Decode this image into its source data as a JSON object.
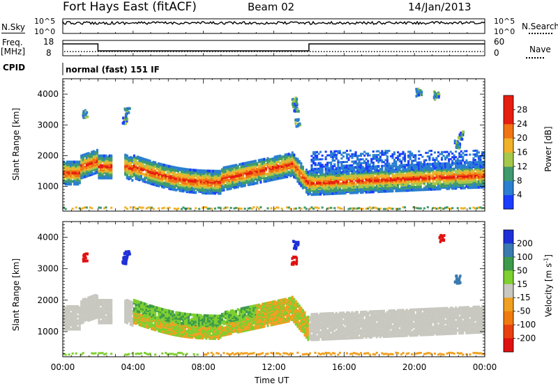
{
  "header": {
    "station": "Fort Hays East (fitACF)",
    "beam": "Beam 02",
    "date": "14/Jan/2013"
  },
  "top_panels": {
    "nsky_label": "N.Sky",
    "nsearch_label": "N.Search",
    "count_ticks": [
      "10^5",
      "10^0"
    ],
    "freq_label_1": "Freq.",
    "freq_label_2": "[MHz]",
    "freq_ticks": [
      "18",
      "8"
    ],
    "nave_label": "Nave",
    "nave_ticks": [
      "60",
      "0"
    ],
    "cpid_label": "CPID",
    "cpid_value": "normal (fast) 151 IF"
  },
  "chart_data": [
    {
      "type": "heatmap",
      "name": "power",
      "ylabel": "Slant Range [km]",
      "yticks": [
        "1000",
        "2000",
        "3000",
        "4000"
      ],
      "ylim": [
        200,
        4500
      ],
      "colorbar_label": "Power [dB]",
      "colorbar_ticks": [
        "4",
        "8",
        "12",
        "16",
        "20",
        "24",
        "28"
      ],
      "colorbar_range": [
        0,
        32
      ],
      "colors": [
        "#1a3cff",
        "#2a7fd0",
        "#3f9a6e",
        "#a6c84a",
        "#f0b22a",
        "#f07414",
        "#e61e10"
      ]
    },
    {
      "type": "heatmap",
      "name": "velocity",
      "ylabel": "Slant Range [km]",
      "yticks": [
        "1000",
        "2000",
        "3000",
        "4000"
      ],
      "ylim": [
        200,
        4500
      ],
      "colorbar_label": "Velocity [m s",
      "colorbar_label_sup": "-1",
      "colorbar_ticks": [
        "200",
        "100",
        "50",
        "15",
        "-15",
        "-50",
        "-100",
        "-200"
      ],
      "colors": [
        "#1e2fd8",
        "#3a7ab0",
        "#3d9a4a",
        "#7ecf30",
        "#c8c8c0",
        "#f0a020",
        "#f07a10",
        "#e84010",
        "#e01010"
      ]
    }
  ],
  "xaxis": {
    "ticks": [
      "00:00",
      "04:00",
      "08:00",
      "12:00",
      "16:00",
      "20:00",
      "00:00"
    ],
    "label": "Time UT"
  }
}
